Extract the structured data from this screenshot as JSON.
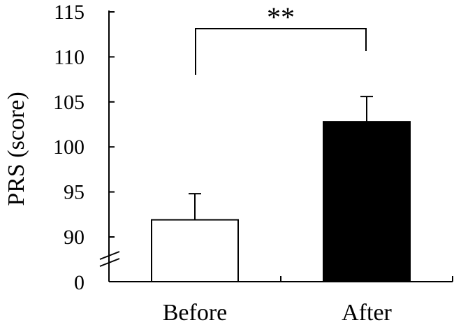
{
  "chart_data": {
    "type": "bar",
    "ylabel": "PRS (score)",
    "categories": [
      "Before",
      "After"
    ],
    "values": [
      91.9,
      102.8
    ],
    "errors": [
      2.9,
      2.8
    ],
    "colors": [
      "#ffffff",
      "#000000"
    ],
    "ylim": [
      85,
      115
    ],
    "yticks": [
      90,
      95,
      100,
      105,
      110,
      115
    ],
    "axis_break": true,
    "break_label": "0",
    "significance": {
      "label": "**",
      "between": [
        "Before",
        "After"
      ]
    }
  }
}
